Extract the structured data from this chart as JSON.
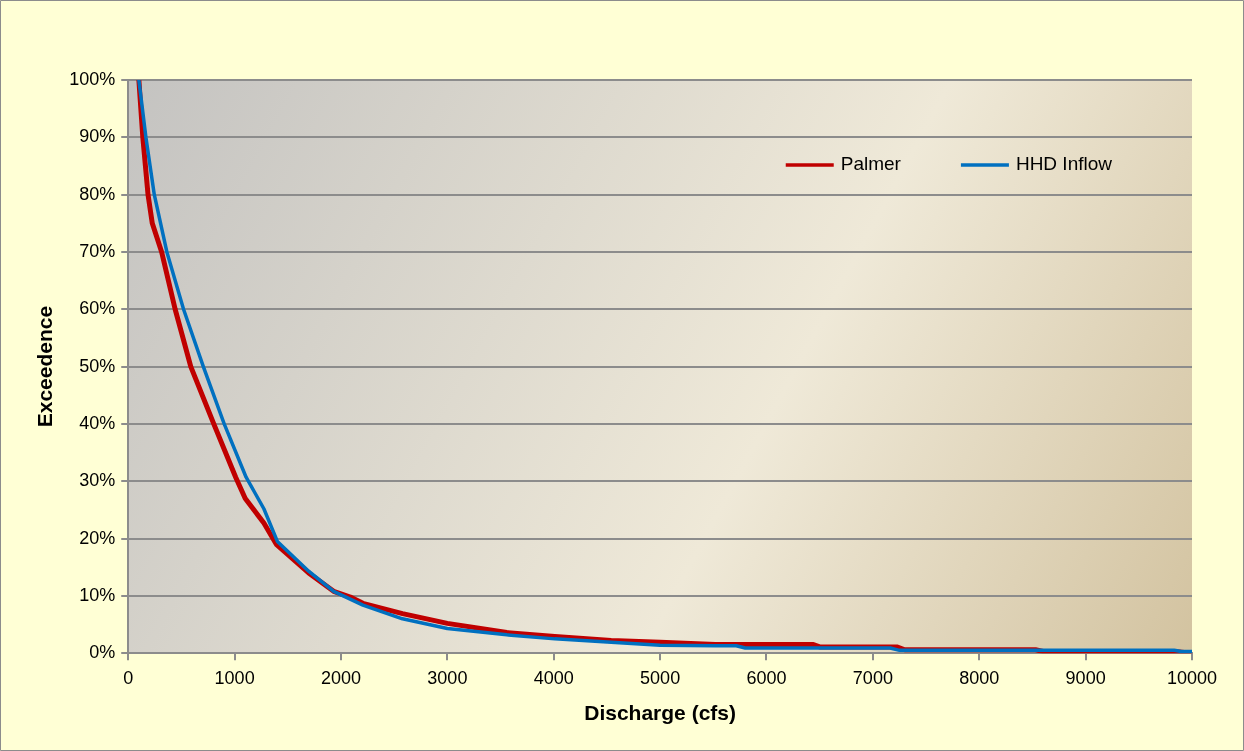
{
  "chart_data": {
    "type": "line",
    "xlabel": "Discharge (cfs)",
    "ylabel": "Exceedence",
    "xlim": [
      0,
      10000
    ],
    "xticks": [
      0,
      1000,
      2000,
      3000,
      4000,
      5000,
      6000,
      7000,
      8000,
      9000,
      10000
    ],
    "ylim": [
      0,
      100
    ],
    "yticks": [
      {
        "value": 0,
        "label": "0%"
      },
      {
        "value": 10,
        "label": "10%"
      },
      {
        "value": 20,
        "label": "20%"
      },
      {
        "value": 30,
        "label": "30%"
      },
      {
        "value": 40,
        "label": "40%"
      },
      {
        "value": 50,
        "label": "50%"
      },
      {
        "value": 60,
        "label": "60%"
      },
      {
        "value": 70,
        "label": "70%"
      },
      {
        "value": 80,
        "label": "80%"
      },
      {
        "value": 90,
        "label": "90%"
      },
      {
        "value": 100,
        "label": "100%"
      }
    ],
    "grid": "y",
    "legend": "top right",
    "marker": "none",
    "line_style": "solid",
    "series": [
      {
        "name": "Palmer",
        "color": "#c00000",
        "x": [
          100,
          137,
          186,
          226,
          314,
          441,
          588,
          804,
          1010,
          1100,
          1275,
          1392,
          1696,
          1931,
          2088,
          2206,
          2578,
          3000,
          3559,
          4010,
          4540,
          5000,
          5520,
          5850,
          6441,
          6500,
          7225,
          7300,
          8529,
          8600,
          9833,
          10000
        ],
        "values": [
          100,
          90,
          80,
          75,
          70,
          60,
          50,
          40,
          30.7,
          27,
          22.7,
          19,
          14,
          10.8,
          9.8,
          8.7,
          6.9,
          5.2,
          3.6,
          2.9,
          2.2,
          1.9,
          1.5,
          1.5,
          1.5,
          1.1,
          1.1,
          0.6,
          0.6,
          0.3,
          0.3,
          0
        ]
      },
      {
        "name": "HHD Inflow",
        "color": "#0070c0",
        "x": [
          100,
          166,
          245,
          363,
          520,
          706,
          902,
          1108,
          1275,
          1402,
          1696,
          1931,
          2206,
          2578,
          3000,
          3559,
          4010,
          4540,
          5000,
          5520,
          5716,
          5800,
          7163,
          7250,
          9833,
          9900,
          10000
        ],
        "values": [
          100,
          90,
          80,
          70,
          60,
          50,
          40,
          30.7,
          25.2,
          19.5,
          14.3,
          10.8,
          8.4,
          6,
          4.3,
          3.2,
          2.5,
          1.9,
          1.4,
          1.3,
          1.3,
          0.9,
          0.9,
          0.5,
          0.5,
          0.3,
          0.3
        ]
      }
    ]
  }
}
